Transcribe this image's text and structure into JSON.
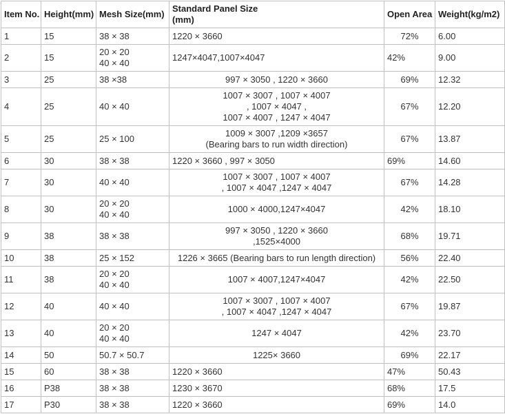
{
  "table": {
    "columns": [
      {
        "label": "Item No."
      },
      {
        "label": "Height(mm)"
      },
      {
        "label": "Mesh Size(mm)"
      },
      {
        "label": "Standard Panel Size",
        "label2": "(mm)"
      },
      {
        "label": "Open Area"
      },
      {
        "label": "Weight(kg/m2)"
      }
    ],
    "rows": [
      {
        "item": "1",
        "height": "15",
        "mesh": [
          "38 × 38"
        ],
        "panel": [
          "1220 × 3660"
        ],
        "panel_align": "left",
        "open": "72%",
        "open_align": "center",
        "weight": "6.00"
      },
      {
        "item": "2",
        "height": "15",
        "mesh": [
          "20 × 20",
          "40 × 40"
        ],
        "panel": [
          "1247×4047,1007×4047"
        ],
        "panel_align": "left",
        "open": "42%",
        "open_align": "left",
        "weight": "9.00"
      },
      {
        "item": "3",
        "height": "25",
        "mesh": [
          "38 ×38"
        ],
        "panel": [
          "997 × 3050 , 1220 × 3660"
        ],
        "panel_align": "center",
        "open": "69%",
        "open_align": "center",
        "weight": "12.32"
      },
      {
        "item": "4",
        "height": "25",
        "mesh": [
          "40 × 40"
        ],
        "panel": [
          "1007 × 3007 , 1007 × 4007",
          ", 1007 × 4047 ,",
          "1007 × 4007 , 1247 × 4047"
        ],
        "panel_align": "center",
        "open": "67%",
        "open_align": "center",
        "weight": "12.20"
      },
      {
        "item": "5",
        "height": "25",
        "mesh": [
          "25 × 100"
        ],
        "panel": [
          "1009 × 3007 ,1209 ×3657",
          "(Bearing bars to run width direction)"
        ],
        "panel_align": "center",
        "open": "67%",
        "open_align": "center",
        "weight": "13.87"
      },
      {
        "item": "6",
        "height": "30",
        "mesh": [
          "38 × 38"
        ],
        "panel": [
          "1220 × 3660 , 997 × 3050"
        ],
        "panel_align": "left",
        "open": "69%",
        "open_align": "left",
        "weight": "14.60"
      },
      {
        "item": "7",
        "height": "30",
        "mesh": [
          "40 × 40"
        ],
        "panel": [
          "1007 × 3007 , 1007 × 4007",
          ", 1007 × 4047 ,1247 × 4047"
        ],
        "panel_align": "center",
        "open": "67%",
        "open_align": "center",
        "weight": "14.28"
      },
      {
        "item": "8",
        "height": "30",
        "mesh": [
          "20 × 20",
          "40 × 40"
        ],
        "panel": [
          "1000 × 4000,1247×4047"
        ],
        "panel_align": "center",
        "open": "42%",
        "open_align": "center",
        "weight": "18.10"
      },
      {
        "item": "9",
        "height": "38",
        "mesh": [
          "38 × 38"
        ],
        "panel": [
          "997 × 3050 , 1220 × 3660",
          ",1525×4000"
        ],
        "panel_align": "center",
        "open": "68%",
        "open_align": "center",
        "weight": "19.71"
      },
      {
        "item": "10",
        "height": "38",
        "mesh": [
          "25 × 152"
        ],
        "panel": [
          "1226 × 3665 (Bearing bars to run length direction)"
        ],
        "panel_align": "center",
        "open": "56%",
        "open_align": "center",
        "weight": "22.40"
      },
      {
        "item": "11",
        "height": "38",
        "mesh": [
          "20 × 20",
          "40 × 40"
        ],
        "panel": [
          "1007 × 4007,1247×4047"
        ],
        "panel_align": "center",
        "open": "42%",
        "open_align": "center",
        "weight": "22.50"
      },
      {
        "item": "12",
        "height": "40",
        "mesh": [
          "40 × 40"
        ],
        "panel": [
          "1007 × 3007 , 1007 × 4007",
          ", 1007 × 4047 ,1247 × 4047"
        ],
        "panel_align": "center",
        "open": "67%",
        "open_align": "center",
        "weight": "19.87"
      },
      {
        "item": "13",
        "height": "40",
        "mesh": [
          "20 × 20",
          "40 × 40"
        ],
        "panel": [
          "1247 × 4047"
        ],
        "panel_align": "center",
        "open": "42%",
        "open_align": "center",
        "weight": "23.70"
      },
      {
        "item": "14",
        "height": "50",
        "mesh": [
          "50.7 × 50.7"
        ],
        "panel": [
          "1225× 3660"
        ],
        "panel_align": "center",
        "open": "69%",
        "open_align": "center",
        "weight": "22.17"
      },
      {
        "item": "15",
        "height": "60",
        "mesh": [
          "38 × 38"
        ],
        "panel": [
          "1220 × 3660"
        ],
        "panel_align": "left",
        "open": "47%",
        "open_align": "left",
        "weight": "50.43"
      },
      {
        "item": "16",
        "height": "P38",
        "mesh": [
          "38 × 38"
        ],
        "panel": [
          "1230 × 3670"
        ],
        "panel_align": "left",
        "open": "68%",
        "open_align": "left",
        "weight": "17.5"
      },
      {
        "item": "17",
        "height": "P30",
        "mesh": [
          "38 × 38"
        ],
        "panel": [
          "1220 × 3660"
        ],
        "panel_align": "left",
        "open": "69%",
        "open_align": "left",
        "weight": "14.0"
      }
    ]
  }
}
